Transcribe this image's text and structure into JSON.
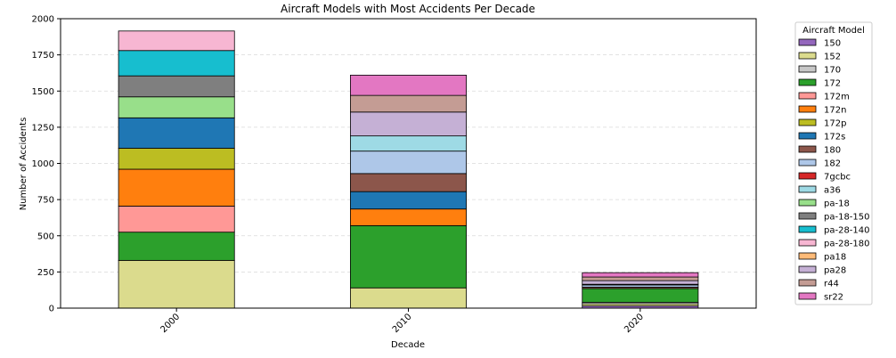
{
  "chart_data": {
    "type": "bar",
    "stacked": true,
    "title": "Aircraft Models with Most Accidents Per Decade",
    "xlabel": "Decade",
    "ylabel": "Number of Accidents",
    "ylim": [
      0,
      2000
    ],
    "yticks": [
      0,
      250,
      500,
      750,
      1000,
      1250,
      1500,
      1750,
      2000
    ],
    "grid": true,
    "categories": [
      "2000",
      "2010",
      "2020"
    ],
    "legend": {
      "title": "Aircraft Model",
      "placement": "outside-right"
    },
    "series": [
      {
        "name": "150",
        "color": "#9467bd",
        "values": [
          0,
          0,
          15
        ]
      },
      {
        "name": "152",
        "color": "#dbdb8d",
        "values": [
          330,
          140,
          15
        ]
      },
      {
        "name": "170",
        "color": "#c7c7c7",
        "values": [
          0,
          0,
          10
        ]
      },
      {
        "name": "172",
        "color": "#2ca02c",
        "values": [
          195,
          430,
          95
        ]
      },
      {
        "name": "172m",
        "color": "#ff9896",
        "values": [
          180,
          0,
          0
        ]
      },
      {
        "name": "172n",
        "color": "#ff7f0e",
        "values": [
          255,
          115,
          0
        ]
      },
      {
        "name": "172p",
        "color": "#bcbd22",
        "values": [
          145,
          0,
          0
        ]
      },
      {
        "name": "172s",
        "color": "#1f77b4",
        "values": [
          210,
          120,
          0
        ]
      },
      {
        "name": "180",
        "color": "#8c564b",
        "values": [
          0,
          125,
          10
        ]
      },
      {
        "name": "182",
        "color": "#aec7e8",
        "values": [
          0,
          155,
          15
        ]
      },
      {
        "name": "7gcbc",
        "color": "#d62728",
        "values": [
          0,
          0,
          0
        ]
      },
      {
        "name": "a36",
        "color": "#9edae5",
        "values": [
          0,
          105,
          5
        ]
      },
      {
        "name": "pa-18",
        "color": "#98df8a",
        "values": [
          145,
          0,
          0
        ]
      },
      {
        "name": "pa-18-150",
        "color": "#7f7f7f",
        "values": [
          145,
          0,
          0
        ]
      },
      {
        "name": "pa-28-140",
        "color": "#17becf",
        "values": [
          175,
          0,
          0
        ]
      },
      {
        "name": "pa-28-180",
        "color": "#f7b6d2",
        "values": [
          135,
          0,
          0
        ]
      },
      {
        "name": "pa18",
        "color": "#ffbb78",
        "values": [
          0,
          0,
          0
        ]
      },
      {
        "name": "pa28",
        "color": "#c5b0d5",
        "values": [
          0,
          165,
          25
        ]
      },
      {
        "name": "r44",
        "color": "#c49c94",
        "values": [
          0,
          115,
          25
        ]
      },
      {
        "name": "sr22",
        "color": "#e377c2",
        "values": [
          0,
          140,
          30
        ]
      }
    ]
  }
}
